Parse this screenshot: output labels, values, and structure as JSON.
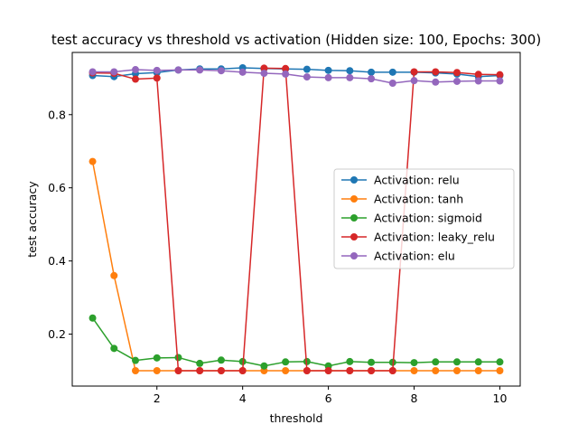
{
  "chart_data": {
    "type": "line",
    "title": "test accuracy vs threshold vs activation (Hidden size: 100, Epochs: 300)",
    "xlabel": "threshold",
    "ylabel": "test accuracy",
    "xlim": [
      0.025,
      10.475
    ],
    "ylim": [
      0.058,
      0.97
    ],
    "xticks": [
      2,
      4,
      6,
      8,
      10
    ],
    "yticks": [
      0.2,
      0.4,
      0.6,
      0.8
    ],
    "grid": false,
    "legend_position": "center-right",
    "x": [
      0.5,
      1.0,
      1.5,
      2.0,
      2.5,
      3.0,
      3.5,
      4.0,
      4.5,
      5.0,
      5.5,
      6.0,
      6.5,
      7.0,
      7.5,
      8.0,
      8.5,
      9.0,
      9.5,
      10.0
    ],
    "series": [
      {
        "name": "Activation: relu",
        "color": "#1f77b4",
        "values": [
          0.907,
          0.904,
          0.912,
          0.915,
          0.922,
          0.925,
          0.925,
          0.928,
          0.926,
          0.925,
          0.924,
          0.921,
          0.92,
          0.916,
          0.916,
          0.916,
          0.914,
          0.911,
          0.904,
          0.907
        ]
      },
      {
        "name": "Activation: tanh",
        "color": "#ff7f0e",
        "values": [
          0.672,
          0.36,
          0.1,
          0.1,
          0.1,
          0.1,
          0.1,
          0.1,
          0.1,
          0.1,
          0.1,
          0.1,
          0.1,
          0.1,
          0.1,
          0.1,
          0.1,
          0.1,
          0.1,
          0.1
        ]
      },
      {
        "name": "Activation: sigmoid",
        "color": "#2ca02c",
        "values": [
          0.244,
          0.161,
          0.128,
          0.135,
          0.136,
          0.12,
          0.129,
          0.125,
          0.113,
          0.124,
          0.125,
          0.113,
          0.125,
          0.123,
          0.123,
          0.122,
          0.124,
          0.124,
          0.124,
          0.124
        ]
      },
      {
        "name": "Activation: leaky_relu",
        "color": "#d62728",
        "values": [
          0.914,
          0.913,
          0.897,
          0.9,
          0.1,
          0.1,
          0.1,
          0.1,
          0.927,
          0.926,
          0.1,
          0.1,
          0.1,
          0.1,
          0.1,
          0.917,
          0.917,
          0.915,
          0.91,
          0.909
        ]
      },
      {
        "name": "Activation: elu",
        "color": "#9467bd",
        "values": [
          0.917,
          0.917,
          0.923,
          0.921,
          0.922,
          0.922,
          0.92,
          0.916,
          0.913,
          0.911,
          0.903,
          0.901,
          0.901,
          0.898,
          0.886,
          0.893,
          0.889,
          0.891,
          0.892,
          0.892
        ]
      }
    ]
  }
}
